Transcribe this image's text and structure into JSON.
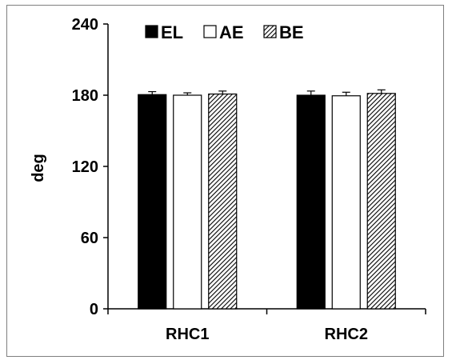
{
  "chart_data": {
    "type": "bar",
    "title": "",
    "xlabel": "",
    "ylabel": "deg",
    "ylim": [
      0,
      240
    ],
    "yticks": [
      "0",
      "60",
      "120",
      "180",
      "240"
    ],
    "categories": [
      "RHC1",
      "RHC2"
    ],
    "series": [
      {
        "name": "EL",
        "values": [
          180.5,
          180.0
        ],
        "errors": [
          2.5,
          3.5
        ],
        "fill": "solid",
        "color": "#000000"
      },
      {
        "name": "AE",
        "values": [
          180.0,
          179.5
        ],
        "errors": [
          2.0,
          3.0
        ],
        "fill": "empty",
        "color": "#ffffff"
      },
      {
        "name": "BE",
        "values": [
          181.0,
          181.5
        ],
        "errors": [
          2.5,
          3.0
        ],
        "fill": "hatched",
        "color": "#555555"
      }
    ],
    "legend": "top",
    "grid": false
  }
}
